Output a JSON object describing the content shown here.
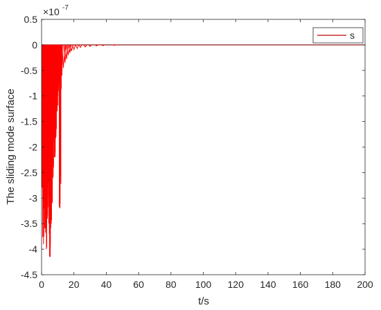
{
  "chart_data": {
    "type": "line",
    "title": "",
    "xlabel": "t/s",
    "ylabel": "The sliding mode surface",
    "y_scale_label": "×10",
    "y_scale_exponent": "-7",
    "xlim": [
      0,
      200
    ],
    "ylim": [
      -4.5,
      0.5
    ],
    "x_ticks": [
      "0",
      "20",
      "40",
      "60",
      "80",
      "100",
      "120",
      "140",
      "160",
      "180",
      "200"
    ],
    "y_ticks": [
      "0.5",
      "0",
      "-0.5",
      "-1",
      "-1.5",
      "-2",
      "-2.5",
      "-3",
      "-3.5",
      "-4",
      "-4.5"
    ],
    "grid": false,
    "legend": {
      "position": "top-right",
      "entries": [
        "s"
      ]
    },
    "series": [
      {
        "name": "s",
        "color": "#ff0000",
        "spikes": [
          {
            "x": 0.6,
            "y": -2.8
          },
          {
            "x": 1.2,
            "y": -3.9
          },
          {
            "x": 1.8,
            "y": -3.2
          },
          {
            "x": 2.4,
            "y": -3.6
          },
          {
            "x": 3.0,
            "y": -4.0
          },
          {
            "x": 3.6,
            "y": -3.4
          },
          {
            "x": 4.2,
            "y": -3.0
          },
          {
            "x": 4.8,
            "y": -3.7
          },
          {
            "x": 5.4,
            "y": -4.15
          },
          {
            "x": 6.0,
            "y": -3.5
          },
          {
            "x": 6.6,
            "y": -3.1
          },
          {
            "x": 7.2,
            "y": -2.6
          },
          {
            "x": 7.8,
            "y": -1.9
          },
          {
            "x": 8.4,
            "y": -2.2
          },
          {
            "x": 9.0,
            "y": -1.7
          },
          {
            "x": 9.6,
            "y": -1.3
          },
          {
            "x": 10.2,
            "y": -1.0
          },
          {
            "x": 10.8,
            "y": -0.8
          },
          {
            "x": 11.4,
            "y": -3.2
          },
          {
            "x": 12.0,
            "y": -0.9
          },
          {
            "x": 12.6,
            "y": -0.6
          },
          {
            "x": 13.5,
            "y": -0.45
          },
          {
            "x": 14.5,
            "y": -0.35
          },
          {
            "x": 15.5,
            "y": -0.28
          },
          {
            "x": 16.5,
            "y": -0.2
          },
          {
            "x": 17.5,
            "y": -0.15
          },
          {
            "x": 18.5,
            "y": -0.12
          },
          {
            "x": 20.0,
            "y": -0.09
          },
          {
            "x": 22.0,
            "y": -0.07
          },
          {
            "x": 24.0,
            "y": -0.05
          },
          {
            "x": 27.0,
            "y": -0.04
          },
          {
            "x": 30.0,
            "y": -0.03
          },
          {
            "x": 34.0,
            "y": -0.02
          },
          {
            "x": 38.0,
            "y": -0.015
          },
          {
            "x": 45.0,
            "y": -0.01
          }
        ]
      }
    ]
  }
}
